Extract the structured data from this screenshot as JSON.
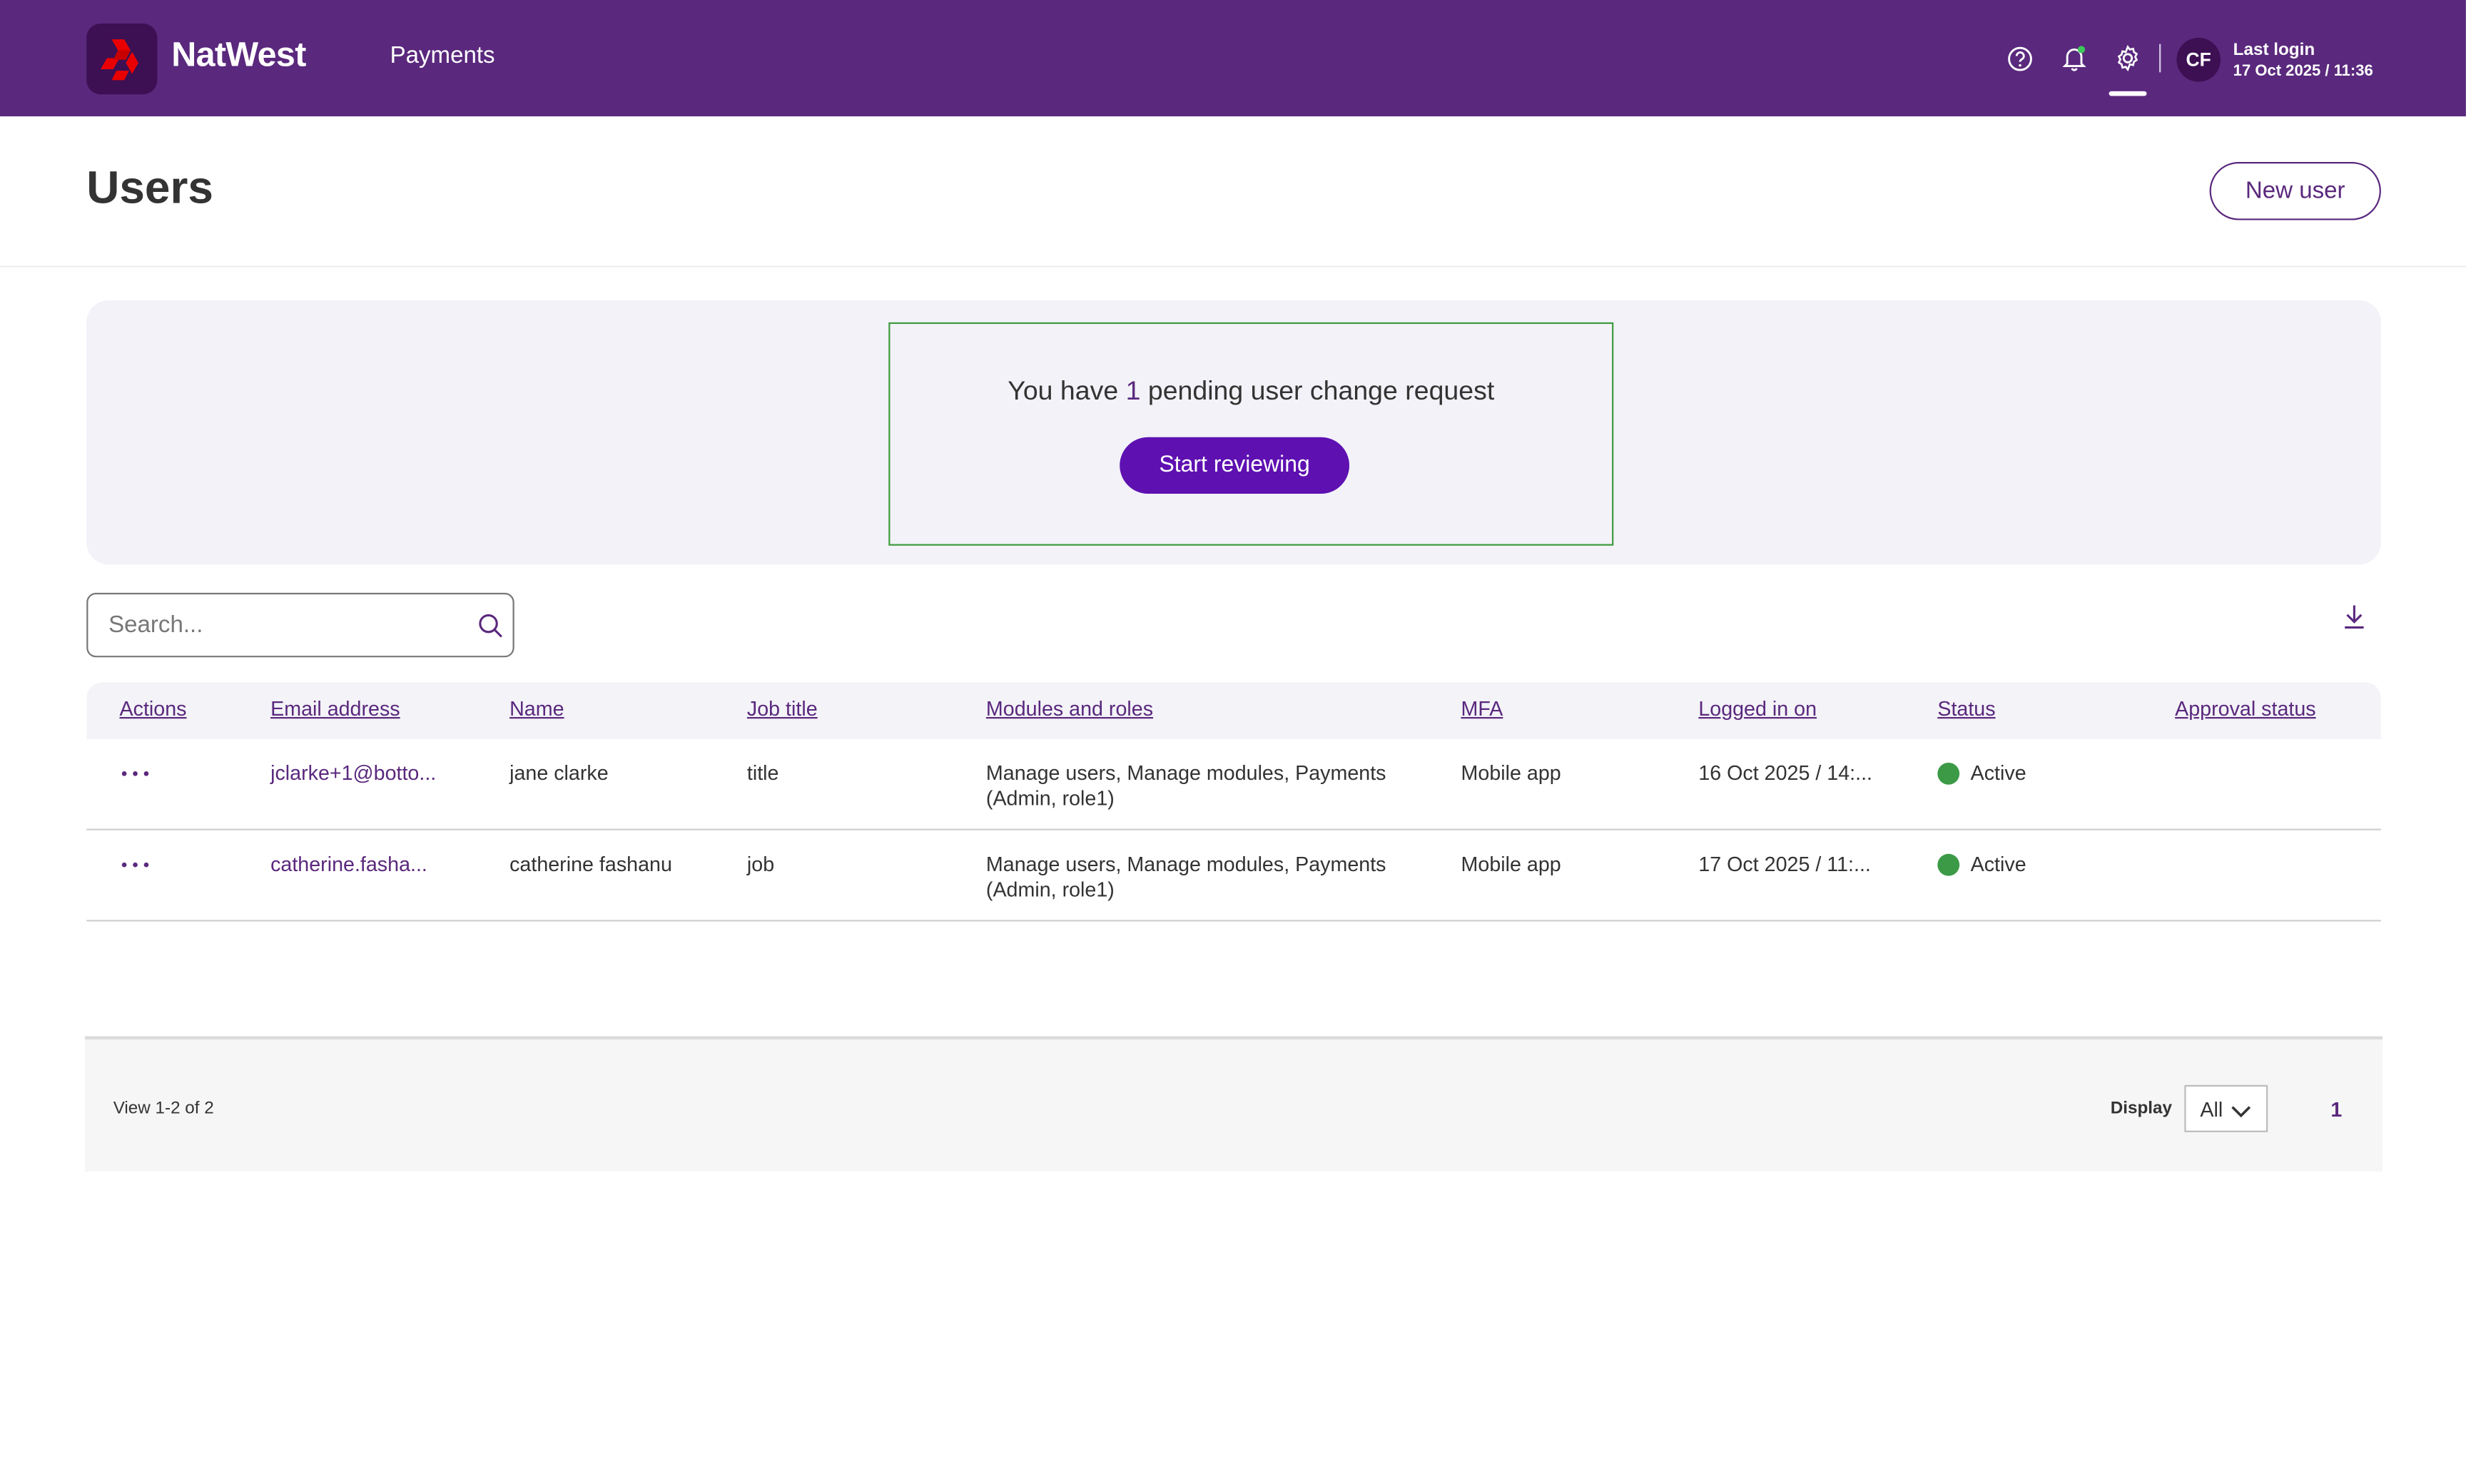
{
  "header": {
    "brand_name": "NatWest",
    "nav_item": "Payments",
    "avatar_initials": "CF",
    "last_login_label": "Last login",
    "last_login_value": "17 Oct 2025 / 11:36",
    "icons": [
      "help-icon",
      "bell-icon",
      "gear-icon"
    ]
  },
  "page": {
    "title": "Users",
    "new_user_label": "New user"
  },
  "pending": {
    "prefix": "You have ",
    "count": "1",
    "suffix": " pending user change request",
    "button_label": "Start reviewing"
  },
  "search": {
    "placeholder": "Search..."
  },
  "table": {
    "columns": [
      "Actions",
      "Email address",
      "Name",
      "Job title",
      "Modules and roles",
      "MFA",
      "Logged in on",
      "Status",
      "Approval status"
    ],
    "rows": [
      {
        "email": "jclarke+1@botto...",
        "name": "jane clarke",
        "job_title": "title",
        "modules_line1": "Manage users, Manage modules, Payments",
        "modules_line2": "(Admin, role1)",
        "mfa": "Mobile app",
        "logged_in": "16 Oct 2025 / 14:...",
        "status": "Active",
        "approval_status": ""
      },
      {
        "email": "catherine.fasha...",
        "name": "catherine fashanu",
        "job_title": "job",
        "modules_line1": "Manage users, Manage modules, Payments",
        "modules_line2": "(Admin, role1)",
        "mfa": "Mobile app",
        "logged_in": "17 Oct 2025 / 11:...",
        "status": "Active",
        "approval_status": ""
      }
    ]
  },
  "footer": {
    "view_count": "View 1-2 of 2",
    "display_label": "Display",
    "display_value": "All",
    "current_page": "1"
  },
  "colors": {
    "brand_purple": "#5a287d",
    "button_purple": "#5e10b1",
    "status_green": "#3c9a47",
    "highlight_border": "#3e9a3e"
  }
}
